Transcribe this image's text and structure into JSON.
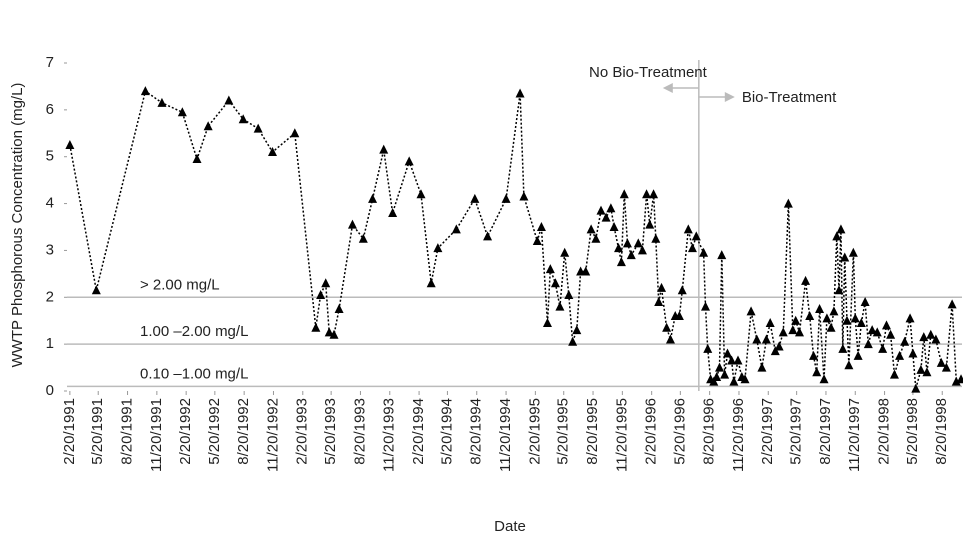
{
  "chart_data": {
    "type": "line",
    "x_label": "Date",
    "y_label": "WWTP Phosphorous Concentration (mg/L)",
    "color": "#000000",
    "line_style": "dotted",
    "marker": "triangle",
    "xlim": [
      "1991-02-11",
      "1998-10-21"
    ],
    "ylim": [
      0,
      7
    ],
    "yticks": [
      0,
      1,
      2,
      3,
      4,
      5,
      6,
      7
    ],
    "xticks": [
      {
        "value": "1991-02-20",
        "label": "2/20/1991"
      },
      {
        "value": "1991-05-20",
        "label": "5/20/1991"
      },
      {
        "value": "1991-08-20",
        "label": "8/20/1991"
      },
      {
        "value": "1991-11-20",
        "label": "11/20/1991"
      },
      {
        "value": "1992-02-20",
        "label": "2/20/1992"
      },
      {
        "value": "1992-05-20",
        "label": "5/20/1992"
      },
      {
        "value": "1992-08-20",
        "label": "8/20/1992"
      },
      {
        "value": "1992-11-20",
        "label": "11/20/1992"
      },
      {
        "value": "1993-02-20",
        "label": "2/20/1993"
      },
      {
        "value": "1993-05-20",
        "label": "5/20/1993"
      },
      {
        "value": "1993-08-20",
        "label": "8/20/1993"
      },
      {
        "value": "1993-11-20",
        "label": "11/20/1993"
      },
      {
        "value": "1994-02-20",
        "label": "2/20/1994"
      },
      {
        "value": "1994-05-20",
        "label": "5/20/1994"
      },
      {
        "value": "1994-08-20",
        "label": "8/20/1994"
      },
      {
        "value": "1994-11-20",
        "label": "11/20/1994"
      },
      {
        "value": "1995-02-20",
        "label": "2/20/1995"
      },
      {
        "value": "1995-05-20",
        "label": "5/20/1995"
      },
      {
        "value": "1995-08-20",
        "label": "8/20/1995"
      },
      {
        "value": "1995-11-20",
        "label": "11/20/1995"
      },
      {
        "value": "1996-02-20",
        "label": "2/20/1996"
      },
      {
        "value": "1996-05-20",
        "label": "5/20/1996"
      },
      {
        "value": "1996-08-20",
        "label": "8/20/1996"
      },
      {
        "value": "1996-11-20",
        "label": "11/20/1996"
      },
      {
        "value": "1997-02-20",
        "label": "2/20/1997"
      },
      {
        "value": "1997-05-20",
        "label": "5/20/1997"
      },
      {
        "value": "1997-08-20",
        "label": "8/20/1997"
      },
      {
        "value": "1997-11-20",
        "label": "11/20/1997"
      },
      {
        "value": "1998-02-20",
        "label": "2/20/1998"
      },
      {
        "value": "1998-05-20",
        "label": "5/20/1998"
      },
      {
        "value": "1998-08-20",
        "label": "8/20/1998"
      }
    ],
    "reference_lines": [
      {
        "value": 2,
        "label": "> 2.00 mg/L"
      },
      {
        "value": 1,
        "label": "1.00 –2.00 mg/L"
      },
      {
        "value": 0.1,
        "label": "0.10 –1.00 mg/L"
      }
    ],
    "divider_date": "1996-07-17",
    "divider_labels": {
      "before": "No Bio-Treatment",
      "after": "Bio-Treatment"
    },
    "x": [
      "1991-02-20",
      "1991-05-14",
      "1991-10-15",
      "1991-12-06",
      "1992-02-08",
      "1992-03-25",
      "1992-04-29",
      "1992-07-03",
      "1992-08-17",
      "1992-10-03",
      "1992-11-17",
      "1993-01-26",
      "1993-04-02",
      "1993-04-17",
      "1993-05-03",
      "1993-05-14",
      "1993-05-29",
      "1993-06-14",
      "1993-07-26",
      "1993-08-29",
      "1993-09-27",
      "1993-11-01",
      "1993-11-29",
      "1994-01-20",
      "1994-02-26",
      "1994-03-30",
      "1994-04-20",
      "1994-06-17",
      "1994-08-14",
      "1994-09-23",
      "1994-11-20",
      "1995-01-03",
      "1995-01-15",
      "1995-02-26",
      "1995-03-11",
      "1995-03-30",
      "1995-04-08",
      "1995-04-24",
      "1995-05-08",
      "1995-05-23",
      "1995-06-05",
      "1995-06-17",
      "1995-06-30",
      "1995-07-12",
      "1995-07-28",
      "1995-08-14",
      "1995-08-29",
      "1995-09-14",
      "1995-09-30",
      "1995-10-15",
      "1995-10-25",
      "1995-11-08",
      "1995-11-17",
      "1995-11-26",
      "1995-12-06",
      "1995-12-18",
      "1996-01-09",
      "1996-01-22",
      "1996-02-04",
      "1996-02-14",
      "1996-02-26",
      "1996-03-04",
      "1996-03-13",
      "1996-03-22",
      "1996-04-07",
      "1996-04-19",
      "1996-05-04",
      "1996-05-17",
      "1996-05-26",
      "1996-06-14",
      "1996-06-27",
      "1996-07-09",
      "1996-08-01",
      "1996-08-07",
      "1996-08-14",
      "1996-08-23",
      "1996-09-02",
      "1996-09-11",
      "1996-09-20",
      "1996-09-27",
      "1996-10-06",
      "1996-10-15",
      "1996-10-28",
      "1996-11-04",
      "1996-11-17",
      "1996-11-29",
      "1996-12-09",
      "1996-12-28",
      "1997-01-15",
      "1997-01-31",
      "1997-02-14",
      "1997-02-26",
      "1997-03-14",
      "1997-03-26",
      "1997-04-08",
      "1997-04-24",
      "1997-05-08",
      "1997-05-17",
      "1997-05-29",
      "1997-06-17",
      "1997-06-30",
      "1997-07-12",
      "1997-07-22",
      "1997-07-31",
      "1997-08-14",
      "1997-08-23",
      "1997-09-05",
      "1997-09-14",
      "1997-09-23",
      "1997-09-30",
      "1997-10-06",
      "1997-10-12",
      "1997-10-18",
      "1997-10-25",
      "1997-10-31",
      "1997-11-14",
      "1997-11-20",
      "1997-11-29",
      "1997-12-09",
      "1997-12-21",
      "1997-12-31",
      "1998-01-12",
      "1998-01-28",
      "1998-02-14",
      "1998-02-26",
      "1998-03-11",
      "1998-03-23",
      "1998-04-08",
      "1998-04-24",
      "1998-05-11",
      "1998-05-20",
      "1998-05-29",
      "1998-06-14",
      "1998-06-23",
      "1998-07-03",
      "1998-07-15",
      "1998-07-31",
      "1998-08-17",
      "1998-09-02",
      "1998-09-20",
      "1998-10-03",
      "1998-10-18"
    ],
    "values": [
      5.25,
      2.15,
      6.4,
      6.15,
      5.95,
      4.95,
      5.65,
      6.2,
      5.8,
      5.6,
      5.1,
      5.5,
      1.35,
      2.05,
      2.3,
      1.25,
      1.2,
      1.75,
      3.55,
      3.25,
      4.1,
      5.15,
      3.8,
      4.9,
      4.2,
      2.3,
      3.05,
      3.45,
      4.1,
      3.3,
      4.1,
      6.35,
      4.15,
      3.2,
      3.5,
      1.45,
      2.6,
      2.3,
      1.8,
      2.95,
      2.05,
      1.05,
      1.3,
      2.55,
      2.55,
      3.45,
      3.25,
      3.85,
      3.7,
      3.9,
      3.5,
      3.05,
      2.75,
      4.2,
      3.15,
      2.9,
      3.15,
      3.0,
      4.2,
      3.55,
      4.2,
      3.25,
      1.9,
      2.2,
      1.35,
      1.1,
      1.6,
      1.6,
      2.15,
      3.45,
      3.05,
      3.3,
      2.95,
      1.8,
      0.9,
      0.25,
      0.2,
      0.3,
      0.5,
      2.9,
      0.35,
      0.8,
      0.65,
      0.2,
      0.65,
      0.3,
      0.25,
      1.7,
      1.1,
      0.5,
      1.1,
      1.45,
      0.85,
      0.95,
      1.25,
      4.0,
      1.3,
      1.5,
      1.25,
      2.35,
      1.6,
      0.75,
      0.4,
      1.75,
      0.25,
      1.55,
      1.35,
      1.7,
      3.3,
      2.15,
      3.45,
      0.9,
      2.85,
      1.5,
      0.55,
      2.95,
      1.55,
      0.75,
      1.45,
      1.9,
      1.0,
      1.3,
      1.25,
      0.9,
      1.4,
      1.2,
      0.35,
      0.75,
      1.05,
      1.55,
      0.8,
      0.05,
      0.45,
      1.15,
      0.4,
      1.2,
      1.1,
      0.6,
      0.5,
      1.85,
      0.2,
      0.25
    ]
  }
}
